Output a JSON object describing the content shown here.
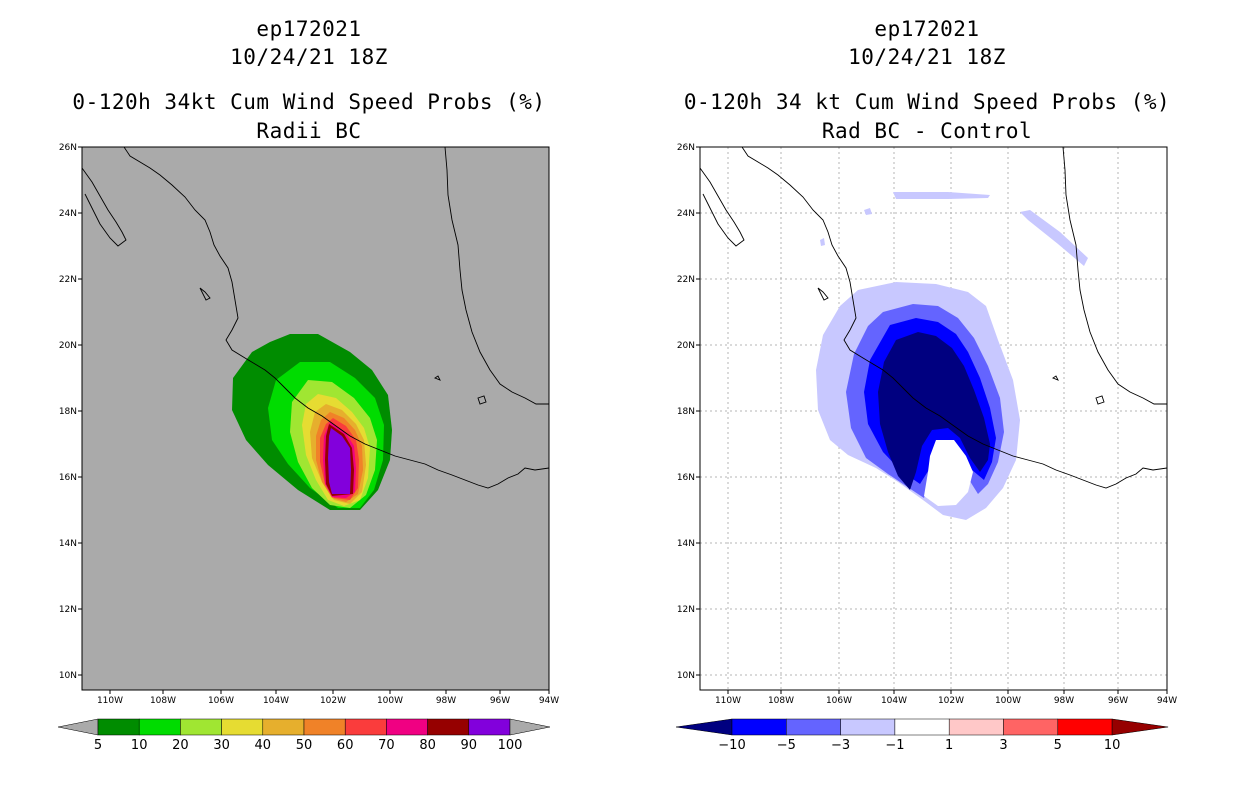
{
  "panels": [
    {
      "id": "left",
      "storm_id": "ep172021",
      "datetime": "10/24/21 18Z",
      "product": "0-120h 34kt Cum Wind Speed Probs (%)",
      "subtitle": "Radii BC",
      "colorbar": {
        "labels": [
          "5",
          "10",
          "20",
          "30",
          "40",
          "50",
          "60",
          "70",
          "80",
          "90",
          "100"
        ],
        "colors": [
          "#008c00",
          "#00dc00",
          "#a0e632",
          "#e6dc32",
          "#e6af2d",
          "#f08228",
          "#fa3c3c",
          "#f00082",
          "#960000",
          "#8200dc"
        ]
      }
    },
    {
      "id": "right",
      "storm_id": "ep172021",
      "datetime": "10/24/21 18Z",
      "product": "0-120h 34 kt Cum Wind Speed Probs (%)",
      "subtitle": "Rad BC - Control",
      "colorbar": {
        "labels": [
          "-10",
          "-5",
          "-3",
          "-1",
          "1",
          "3",
          "5",
          "10"
        ],
        "colors": [
          "#000080",
          "#0000ff",
          "#6464ff",
          "#c8c8ff",
          "#ffffff",
          "#ffc8c8",
          "#ff6464",
          "#ff0000",
          "#960000"
        ]
      }
    }
  ],
  "map": {
    "lat_labels": [
      "26N",
      "24N",
      "22N",
      "20N",
      "18N",
      "16N",
      "14N",
      "12N",
      "10N"
    ],
    "lon_labels": [
      "110W",
      "108W",
      "106W",
      "104W",
      "102W",
      "100W",
      "98W",
      "96W",
      "94W"
    ]
  },
  "colors": {
    "land_bg": "#aaaaaa",
    "coast": "#000000",
    "grid": "#b4b4b4"
  }
}
